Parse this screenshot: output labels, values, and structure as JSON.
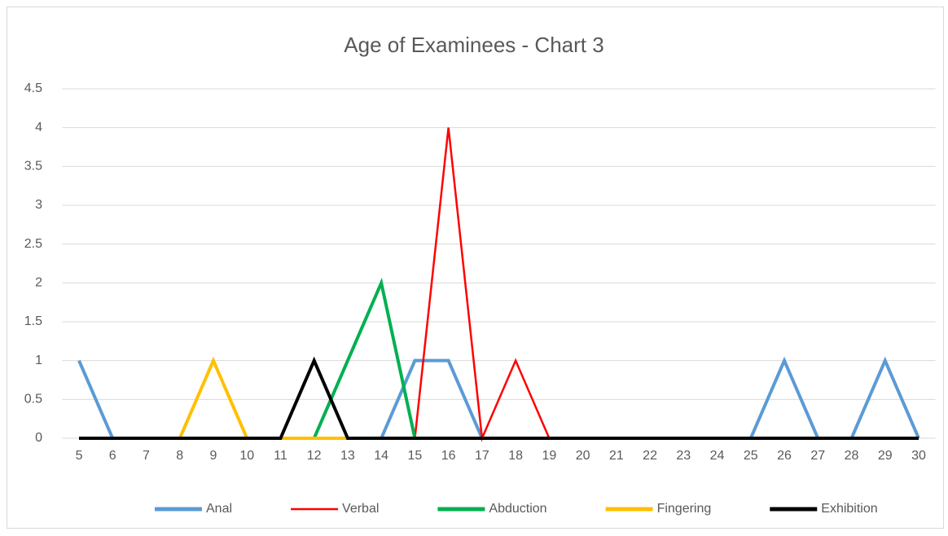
{
  "chart_data": {
    "type": "line",
    "title": "Age of Examinees - Chart 3",
    "categories": [
      5,
      6,
      7,
      8,
      9,
      10,
      11,
      12,
      13,
      14,
      15,
      16,
      17,
      18,
      19,
      20,
      21,
      22,
      23,
      24,
      25,
      26,
      27,
      28,
      29,
      30
    ],
    "series": [
      {
        "name": "Anal",
        "color": "#5b9bd5",
        "values": [
          1,
          0,
          0,
          0,
          0,
          0,
          0,
          0,
          0,
          0,
          1,
          1,
          0,
          0,
          0,
          0,
          0,
          0,
          0,
          0,
          0,
          1,
          0,
          0,
          1,
          0
        ]
      },
      {
        "name": "Verbal",
        "color": "#ff0000",
        "values": [
          0,
          0,
          0,
          0,
          0,
          0,
          0,
          0,
          0,
          0,
          0,
          4,
          0,
          1,
          0,
          0,
          0,
          0,
          0,
          0,
          0,
          0,
          0,
          0,
          0,
          0
        ]
      },
      {
        "name": "Abduction",
        "color": "#00b050",
        "values": [
          0,
          0,
          0,
          0,
          0,
          0,
          0,
          0,
          1,
          2,
          0,
          0,
          0,
          0,
          0,
          0,
          0,
          0,
          0,
          0,
          0,
          0,
          0,
          0,
          0,
          0
        ]
      },
      {
        "name": "Fingering",
        "color": "#ffc000",
        "values": [
          0,
          0,
          0,
          0,
          1,
          0,
          0,
          0,
          0,
          0,
          0,
          0,
          0,
          0,
          0,
          0,
          0,
          0,
          0,
          0,
          0,
          0,
          0,
          0,
          0,
          0
        ]
      },
      {
        "name": "Exhibition",
        "color": "#000000",
        "values": [
          0,
          0,
          0,
          0,
          0,
          0,
          0,
          1,
          0,
          0,
          0,
          0,
          0,
          0,
          0,
          0,
          0,
          0,
          0,
          0,
          0,
          0,
          0,
          0,
          0,
          0
        ]
      }
    ],
    "ylim": [
      0,
      4.5
    ],
    "yticks": [
      0,
      0.5,
      1,
      1.5,
      2,
      2.5,
      3,
      3.5,
      4,
      4.5
    ],
    "grid": true,
    "legend": "bottom"
  }
}
